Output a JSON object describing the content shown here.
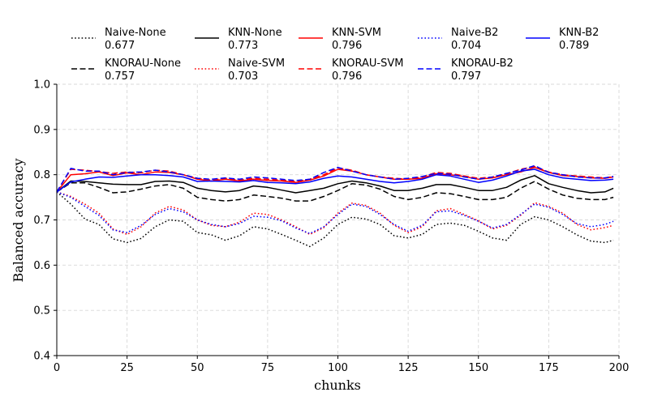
{
  "chart_data": {
    "type": "line",
    "title": "",
    "xlabel": "chunks",
    "ylabel": "Balanced accuracy",
    "xlim": [
      0,
      200
    ],
    "ylim": [
      0.4,
      1.0
    ],
    "xticks": [
      "0",
      "25",
      "50",
      "75",
      "100",
      "125",
      "150",
      "175",
      "200"
    ],
    "yticks": [
      "0.4",
      "0.5",
      "0.6",
      "0.7",
      "0.8",
      "0.9",
      "1.0"
    ],
    "grid": true,
    "legend_position": "top",
    "x": [
      0,
      5,
      10,
      15,
      20,
      25,
      30,
      35,
      40,
      45,
      50,
      55,
      60,
      65,
      70,
      75,
      80,
      85,
      90,
      95,
      100,
      105,
      110,
      115,
      120,
      125,
      130,
      135,
      140,
      145,
      150,
      155,
      160,
      165,
      170,
      175,
      180,
      185,
      190,
      195,
      198
    ],
    "series": [
      {
        "name": "Naive-None",
        "score": "0.677",
        "color": "#000000",
        "dash": "dotted",
        "values": [
          0.762,
          0.735,
          0.702,
          0.69,
          0.658,
          0.65,
          0.659,
          0.685,
          0.7,
          0.697,
          0.672,
          0.667,
          0.655,
          0.665,
          0.685,
          0.68,
          0.668,
          0.655,
          0.641,
          0.66,
          0.69,
          0.706,
          0.702,
          0.69,
          0.665,
          0.66,
          0.668,
          0.69,
          0.693,
          0.688,
          0.675,
          0.66,
          0.655,
          0.69,
          0.707,
          0.7,
          0.685,
          0.667,
          0.653,
          0.65,
          0.655
        ]
      },
      {
        "name": "KNORAU-None",
        "score": "0.757",
        "color": "#000000",
        "dash": "dashed",
        "values": [
          0.762,
          0.782,
          0.782,
          0.772,
          0.76,
          0.762,
          0.768,
          0.775,
          0.778,
          0.77,
          0.75,
          0.745,
          0.742,
          0.745,
          0.755,
          0.752,
          0.748,
          0.742,
          0.742,
          0.752,
          0.765,
          0.78,
          0.777,
          0.768,
          0.752,
          0.745,
          0.75,
          0.76,
          0.758,
          0.752,
          0.745,
          0.745,
          0.75,
          0.77,
          0.785,
          0.768,
          0.755,
          0.748,
          0.745,
          0.745,
          0.75
        ]
      },
      {
        "name": "KNN-None",
        "score": "0.773",
        "color": "#000000",
        "dash": "solid",
        "values": [
          0.762,
          0.786,
          0.785,
          0.782,
          0.779,
          0.778,
          0.778,
          0.785,
          0.786,
          0.783,
          0.77,
          0.765,
          0.762,
          0.765,
          0.775,
          0.772,
          0.766,
          0.76,
          0.765,
          0.77,
          0.78,
          0.786,
          0.782,
          0.775,
          0.765,
          0.765,
          0.77,
          0.778,
          0.778,
          0.772,
          0.765,
          0.765,
          0.772,
          0.788,
          0.798,
          0.78,
          0.772,
          0.765,
          0.76,
          0.762,
          0.77
        ]
      },
      {
        "name": "Naive-SVM",
        "score": "0.703",
        "color": "#ff0000",
        "dash": "dotted",
        "values": [
          0.762,
          0.752,
          0.735,
          0.715,
          0.68,
          0.668,
          0.685,
          0.715,
          0.73,
          0.722,
          0.7,
          0.688,
          0.685,
          0.695,
          0.715,
          0.712,
          0.7,
          0.685,
          0.668,
          0.683,
          0.715,
          0.737,
          0.732,
          0.715,
          0.688,
          0.672,
          0.685,
          0.72,
          0.725,
          0.712,
          0.698,
          0.68,
          0.688,
          0.71,
          0.738,
          0.73,
          0.715,
          0.69,
          0.678,
          0.683,
          0.688
        ]
      },
      {
        "name": "KNN-SVM",
        "score": "0.796",
        "color": "#ff0000",
        "dash": "solid",
        "values": [
          0.762,
          0.8,
          0.802,
          0.806,
          0.798,
          0.804,
          0.8,
          0.806,
          0.805,
          0.8,
          0.79,
          0.786,
          0.79,
          0.786,
          0.79,
          0.787,
          0.786,
          0.783,
          0.788,
          0.797,
          0.812,
          0.808,
          0.8,
          0.795,
          0.79,
          0.79,
          0.792,
          0.802,
          0.8,
          0.796,
          0.79,
          0.793,
          0.8,
          0.806,
          0.816,
          0.805,
          0.798,
          0.796,
          0.793,
          0.792,
          0.795
        ]
      },
      {
        "name": "KNORAU-SVM",
        "score": "0.796",
        "color": "#ff0000",
        "dash": "dashed",
        "values": [
          0.762,
          0.812,
          0.81,
          0.807,
          0.803,
          0.806,
          0.804,
          0.81,
          0.808,
          0.8,
          0.792,
          0.788,
          0.792,
          0.788,
          0.792,
          0.79,
          0.788,
          0.785,
          0.79,
          0.8,
          0.815,
          0.81,
          0.8,
          0.795,
          0.792,
          0.79,
          0.795,
          0.805,
          0.803,
          0.797,
          0.792,
          0.795,
          0.802,
          0.812,
          0.818,
          0.806,
          0.8,
          0.797,
          0.795,
          0.793,
          0.796
        ]
      },
      {
        "name": "Naive-B2",
        "score": "0.704",
        "color": "#0000ff",
        "dash": "dotted",
        "values": [
          0.762,
          0.75,
          0.73,
          0.71,
          0.678,
          0.672,
          0.688,
          0.712,
          0.725,
          0.718,
          0.7,
          0.69,
          0.685,
          0.692,
          0.708,
          0.706,
          0.698,
          0.682,
          0.67,
          0.685,
          0.712,
          0.735,
          0.73,
          0.712,
          0.69,
          0.675,
          0.688,
          0.718,
          0.72,
          0.71,
          0.697,
          0.682,
          0.69,
          0.712,
          0.735,
          0.728,
          0.712,
          0.692,
          0.685,
          0.69,
          0.697
        ]
      },
      {
        "name": "KNORAU-B2",
        "score": "0.797",
        "color": "#0000ff",
        "dash": "dashed",
        "values": [
          0.762,
          0.814,
          0.808,
          0.808,
          0.8,
          0.805,
          0.806,
          0.81,
          0.806,
          0.8,
          0.792,
          0.79,
          0.793,
          0.79,
          0.795,
          0.793,
          0.79,
          0.787,
          0.79,
          0.805,
          0.816,
          0.808,
          0.8,
          0.795,
          0.79,
          0.792,
          0.796,
          0.803,
          0.801,
          0.795,
          0.79,
          0.795,
          0.803,
          0.81,
          0.82,
          0.805,
          0.8,
          0.795,
          0.793,
          0.793,
          0.796
        ]
      },
      {
        "name": "KNN-B2",
        "score": "0.789",
        "color": "#0000ff",
        "dash": "solid",
        "values": [
          0.762,
          0.784,
          0.79,
          0.795,
          0.794,
          0.797,
          0.8,
          0.8,
          0.798,
          0.795,
          0.785,
          0.786,
          0.785,
          0.784,
          0.787,
          0.783,
          0.782,
          0.78,
          0.784,
          0.792,
          0.797,
          0.795,
          0.79,
          0.785,
          0.782,
          0.785,
          0.79,
          0.8,
          0.797,
          0.79,
          0.783,
          0.788,
          0.797,
          0.808,
          0.812,
          0.8,
          0.793,
          0.79,
          0.787,
          0.788,
          0.79
        ]
      }
    ]
  }
}
